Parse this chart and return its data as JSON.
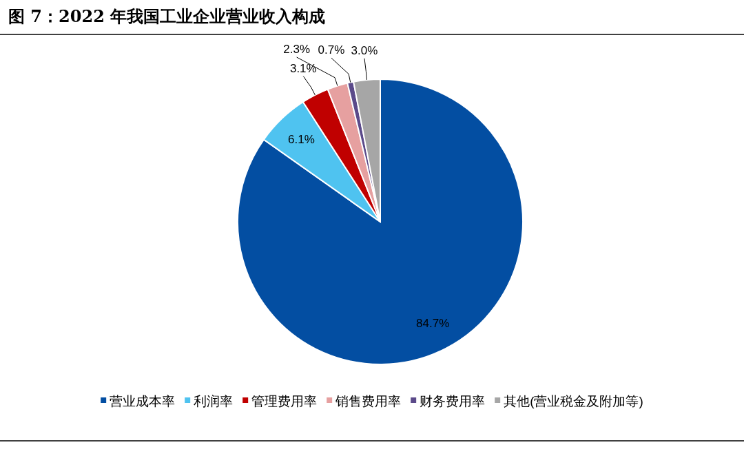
{
  "chart_data": {
    "type": "pie",
    "title": "图 7：2022 年我国工业企业营业收入构成",
    "categories": [
      "营业成本率",
      "利润率",
      "管理费用率",
      "销售费用率",
      "财务费用率",
      "其他(营业税金及附加等)"
    ],
    "values": [
      84.7,
      6.1,
      3.1,
      2.3,
      0.7,
      3.0
    ],
    "colors": [
      "#034ea2",
      "#4fc3f0",
      "#c00000",
      "#e6a0a0",
      "#5b4a8a",
      "#a6a6a6"
    ],
    "value_labels": [
      "84.7%",
      "6.1%",
      "3.1%",
      "2.3%",
      "0.7%",
      "3.0%"
    ],
    "legend": "bottom"
  }
}
